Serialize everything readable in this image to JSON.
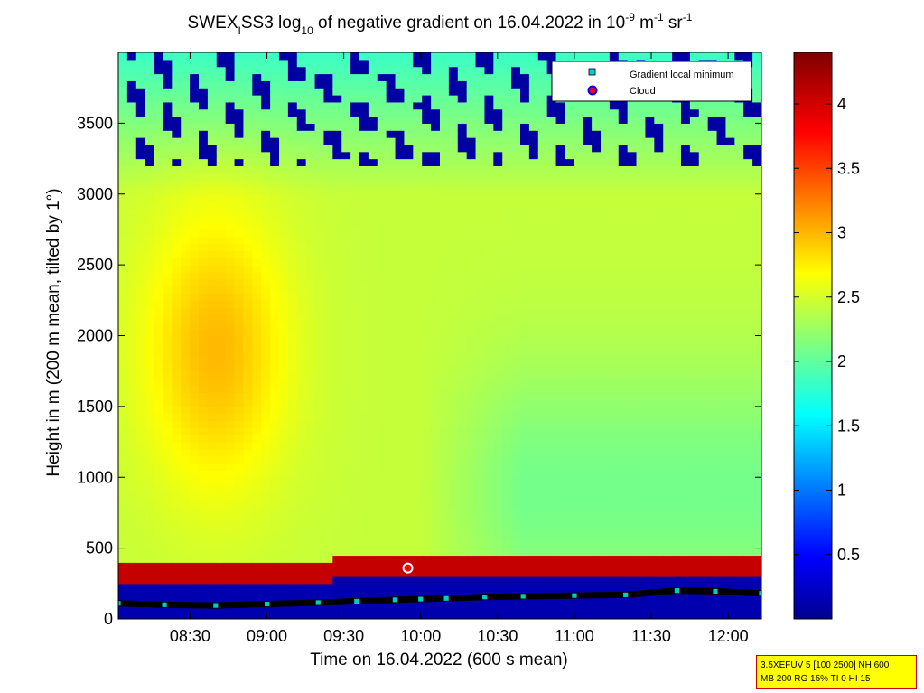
{
  "chart_data": {
    "type": "heatmap",
    "title": {
      "part1": "SWEX",
      "sub1": "I",
      "part2": "SS3 log",
      "sub2": "10",
      "part3": " of negative gradient on 16.04.2022 in 10",
      "sup1": "-9",
      "part4": " m",
      "sup2": "-1",
      "part5": " sr",
      "sup3": "-1"
    },
    "xlabel": "Time on 16.04.2022 (600 s mean)",
    "ylabel": "Height in m (200 m mean, tilted by 1°)",
    "x_ticks": [
      "08:30",
      "09:00",
      "09:30",
      "10:00",
      "10:30",
      "11:00",
      "11:30",
      "12:00"
    ],
    "x_tick_minutes": [
      510,
      540,
      570,
      600,
      630,
      660,
      690,
      720
    ],
    "xlim_minutes": [
      482,
      733
    ],
    "y_ticks": [
      0,
      500,
      1000,
      1500,
      2000,
      2500,
      3000,
      3500
    ],
    "ylim": [
      0,
      4000
    ],
    "colorbar": {
      "ticks": [
        "0.5",
        "1",
        "1.5",
        "2",
        "2.5",
        "3",
        "3.5",
        "4"
      ],
      "tick_values": [
        0.5,
        1,
        1.5,
        2,
        2.5,
        3,
        3.5,
        4
      ],
      "range": [
        0,
        4.4
      ],
      "colormap": "jet"
    },
    "legend": {
      "placement": "top-right",
      "entries": [
        {
          "label": "Gradient local minimum",
          "marker": "square",
          "color": "#00cccc"
        },
        {
          "label": "Cloud",
          "marker": "circle",
          "color": "#ff0000"
        }
      ]
    },
    "field_description": {
      "boundary_layer_top_m": 250,
      "near_surface_value": 0.2,
      "mid_level_value": 2.5,
      "elevated_max_value": 3.0,
      "upper_noise_height_m": 3500
    },
    "gradient_minimum_track": {
      "time_minutes": [
        482,
        500,
        520,
        540,
        560,
        575,
        590,
        600,
        610,
        625,
        640,
        660,
        680,
        700,
        715,
        733
      ],
      "height_m": [
        110,
        100,
        95,
        105,
        115,
        125,
        135,
        140,
        145,
        155,
        160,
        165,
        170,
        200,
        195,
        180
      ]
    },
    "cloud_points": {
      "time_minutes": [
        595
      ],
      "height_m": [
        360
      ]
    }
  },
  "infobox": {
    "line1": "3.5XEFUV 5 [100 2500] NH 600",
    "line2": "MB 200 RG 15% TI 0 HI 15"
  }
}
